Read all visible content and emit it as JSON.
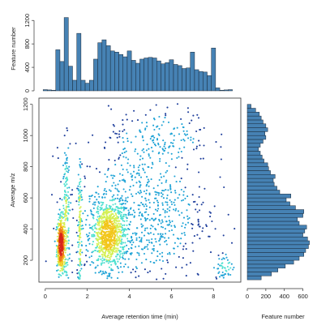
{
  "chart_data": [
    {
      "type": "scatter",
      "panel": "main",
      "xlabel": "Average retention time (min)",
      "ylabel": "Average m/z",
      "xlim": [
        -0.3,
        9.3
      ],
      "ylim": [
        60,
        1240
      ],
      "x_ticks": [
        0,
        2,
        4,
        6,
        8
      ],
      "y_ticks": [
        200,
        400,
        600,
        800,
        1000,
        1200
      ],
      "x_tick_labels": [
        "0",
        "2",
        "4",
        "6",
        "8"
      ],
      "y_tick_labels": [
        "200",
        "400",
        "600",
        "800",
        "1000",
        "1200"
      ],
      "coloring": "point density",
      "color_scale": [
        "#1f3f9c",
        "#1fa3d6",
        "#4fe0d0",
        "#d4f055",
        "#f2c61a",
        "#f07a1a",
        "#d8261a"
      ],
      "density_clusters": [
        {
          "x_center": 0.75,
          "y_center": 300,
          "x_spread": 0.1,
          "y_spread": 90,
          "weight": 0.16
        },
        {
          "x_center": 1.0,
          "y_center": 460,
          "x_spread": 0.09,
          "y_spread": 240,
          "weight": 0.07
        },
        {
          "x_center": 1.65,
          "y_center": 400,
          "x_spread": 0.05,
          "y_spread": 240,
          "weight": 0.05
        },
        {
          "x_center": 3.0,
          "y_center": 360,
          "x_spread": 0.4,
          "y_spread": 110,
          "weight": 0.32
        },
        {
          "x_center": 4.5,
          "y_center": 500,
          "x_spread": 1.6,
          "y_spread": 230,
          "weight": 0.28
        },
        {
          "x_center": 5.5,
          "y_center": 1000,
          "x_spread": 1.2,
          "y_spread": 90,
          "weight": 0.06
        },
        {
          "x_center": 8.6,
          "y_center": 160,
          "x_spread": 0.3,
          "y_spread": 40,
          "weight": 0.02
        }
      ]
    },
    {
      "type": "bar",
      "panel": "top-marginal",
      "ylabel": "Feature number",
      "ylim": [
        0,
        1300
      ],
      "y_ticks": [
        0,
        400,
        800,
        1200
      ],
      "y_tick_labels": [
        "0",
        "400",
        "800",
        "1200"
      ],
      "bin_width": 0.2,
      "x_bin_starts": [
        -0.1,
        0.1,
        0.3,
        0.5,
        0.7,
        0.9,
        1.1,
        1.3,
        1.5,
        1.7,
        1.9,
        2.1,
        2.3,
        2.5,
        2.7,
        2.9,
        3.1,
        3.3,
        3.5,
        3.7,
        3.9,
        4.1,
        4.3,
        4.5,
        4.7,
        4.9,
        5.1,
        5.3,
        5.5,
        5.7,
        5.9,
        6.1,
        6.3,
        6.5,
        6.7,
        6.9,
        7.1,
        7.3,
        7.5,
        7.7,
        7.9,
        8.1,
        8.3,
        8.5,
        8.7
      ],
      "values": [
        20,
        15,
        10,
        700,
        500,
        1250,
        420,
        180,
        980,
        180,
        130,
        180,
        540,
        820,
        870,
        770,
        680,
        660,
        620,
        580,
        680,
        520,
        470,
        540,
        560,
        570,
        560,
        510,
        460,
        480,
        530,
        450,
        430,
        380,
        390,
        660,
        360,
        330,
        320,
        260,
        730,
        50,
        10,
        15,
        20
      ],
      "color": "#4682b4"
    },
    {
      "type": "bar",
      "panel": "right-marginal",
      "orientation": "horizontal",
      "xlabel": "Feature number",
      "xlim": [
        0,
        700
      ],
      "x_ticks": [
        0,
        200,
        400,
        600
      ],
      "x_tick_labels": [
        "0",
        "200",
        "400",
        "600"
      ],
      "bin_width": 25,
      "y_bin_starts": [
        75,
        100,
        125,
        150,
        175,
        200,
        225,
        250,
        275,
        300,
        325,
        350,
        375,
        400,
        425,
        450,
        475,
        500,
        525,
        550,
        575,
        600,
        625,
        650,
        675,
        700,
        725,
        750,
        775,
        800,
        825,
        850,
        875,
        900,
        925,
        950,
        975,
        1000,
        1025,
        1050,
        1075,
        1100,
        1125,
        1150,
        1175
      ],
      "values": [
        150,
        260,
        330,
        410,
        500,
        560,
        610,
        630,
        660,
        670,
        650,
        600,
        620,
        640,
        560,
        540,
        600,
        610,
        520,
        460,
        420,
        470,
        350,
        320,
        290,
        280,
        300,
        250,
        230,
        220,
        180,
        160,
        140,
        120,
        140,
        170,
        200,
        190,
        220,
        200,
        170,
        150,
        130,
        90,
        40
      ],
      "color": "#4682b4"
    }
  ]
}
